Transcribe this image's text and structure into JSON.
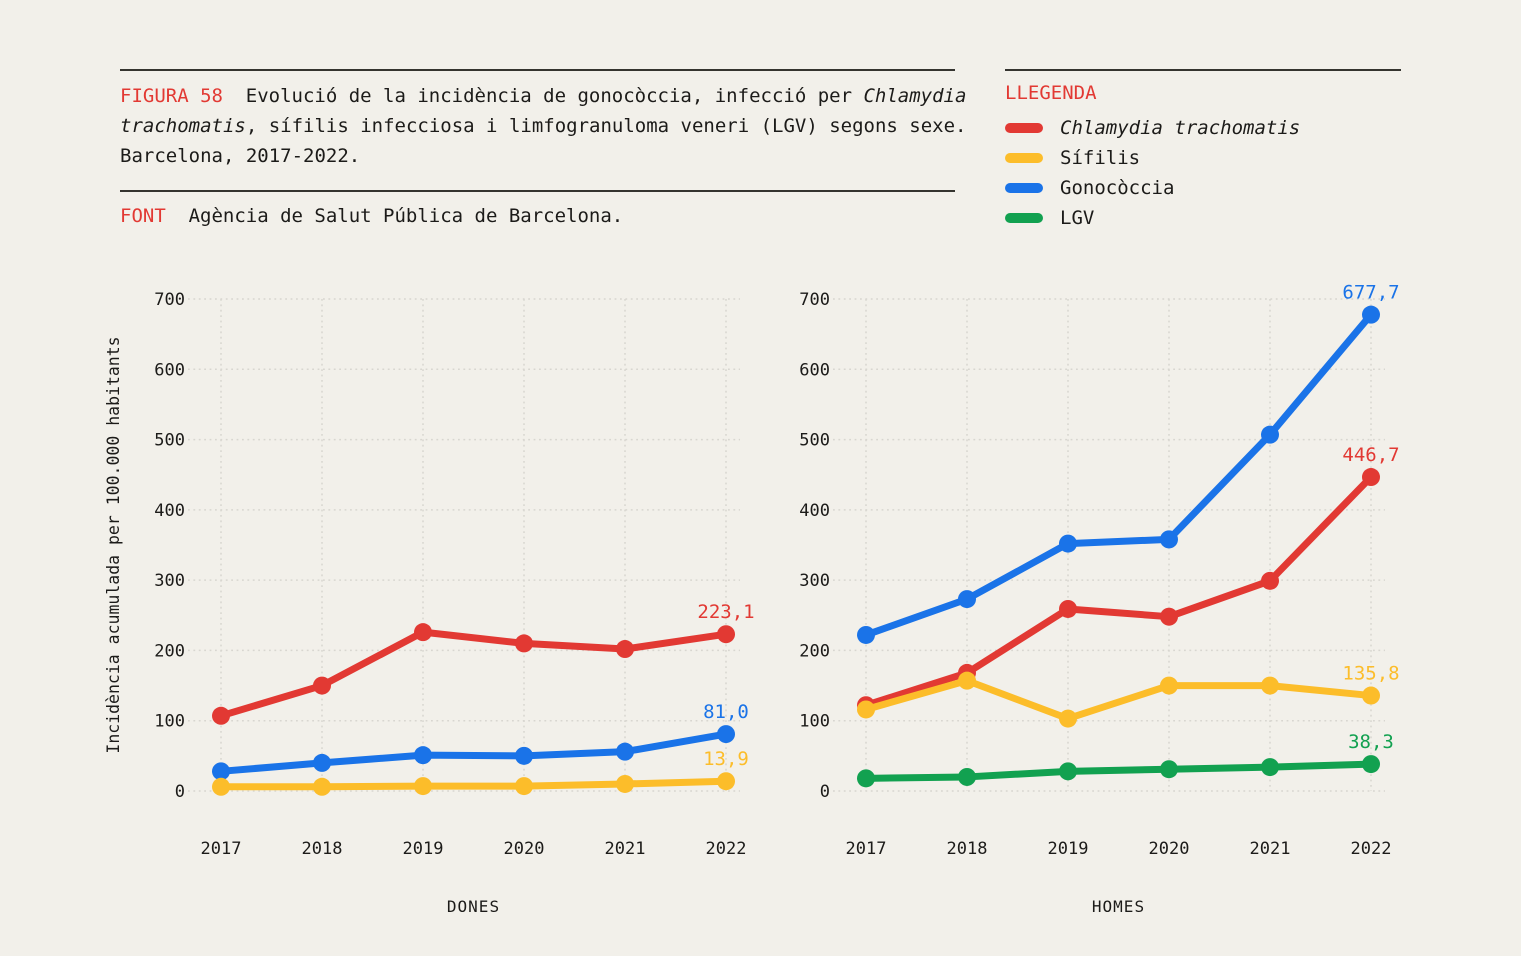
{
  "header": {
    "figure_label": "FIGURA 58",
    "title_before_italic": "Evolució de la incidència de gonocòccia, infecció per ",
    "title_italic": "Chlamydia trachomatis",
    "title_after_italic": ", sífilis infecciosa i limfogranuloma veneri (LGV) segons sexe. Barcelona, 2017-2022.",
    "font_label": "FONT",
    "font_text": "Agència de Salut Pública de Barcelona."
  },
  "legend": {
    "title": "LLEGENDA",
    "items": [
      {
        "label": "Chlamydia trachomatis",
        "color": "#e23933",
        "italic": true
      },
      {
        "label": "Sífilis",
        "color": "#fcbd2a",
        "italic": false
      },
      {
        "label": "Gonocòccia",
        "color": "#1a73e8",
        "italic": false
      },
      {
        "label": "LGV",
        "color": "#12a150",
        "italic": false
      }
    ]
  },
  "colors": {
    "background": "#f2f0ea",
    "text": "#1c1b19",
    "accent_red": "#e23933",
    "sifilis_yellow": "#fcbd2a",
    "gonococcia_blue": "#1a73e8",
    "lgv_green": "#12a150",
    "grid": "#d8d6d0",
    "rule": "#35342f"
  },
  "chart_data": [
    {
      "type": "line",
      "title": "DONES",
      "categories": [
        "2017",
        "2018",
        "2019",
        "2020",
        "2021",
        "2022"
      ],
      "xlabel": "",
      "ylabel": "Incidència acumulada per 100.000 habitants",
      "ylim": [
        0,
        700
      ],
      "ytick_step": 100,
      "grid": "dotted",
      "legend_position": "top-right-of-page",
      "series": [
        {
          "name": "Chlamydia trachomatis",
          "color": "#e23933",
          "values": [
            107,
            150,
            226,
            210,
            202,
            223.1
          ],
          "end_label": "223,1"
        },
        {
          "name": "Gonocòccia",
          "color": "#1a73e8",
          "values": [
            28,
            40,
            51,
            50,
            56,
            81.0
          ],
          "end_label": "81,0"
        },
        {
          "name": "Sífilis",
          "color": "#fcbd2a",
          "values": [
            6,
            6,
            7,
            7,
            10,
            13.9
          ],
          "end_label": "13,9"
        }
      ]
    },
    {
      "type": "line",
      "title": "HOMES",
      "categories": [
        "2017",
        "2018",
        "2019",
        "2020",
        "2021",
        "2022"
      ],
      "xlabel": "",
      "ylabel": "",
      "ylim": [
        0,
        700
      ],
      "ytick_step": 100,
      "grid": "dotted",
      "legend_position": "top-right-of-page",
      "series": [
        {
          "name": "Gonocòccia",
          "color": "#1a73e8",
          "values": [
            222,
            273,
            352,
            358,
            507,
            677.7
          ],
          "end_label": "677,7"
        },
        {
          "name": "Chlamydia trachomatis",
          "color": "#e23933",
          "values": [
            122,
            168,
            259,
            248,
            299,
            446.7
          ],
          "end_label": "446,7"
        },
        {
          "name": "Sífilis",
          "color": "#fcbd2a",
          "values": [
            116,
            157,
            103,
            150,
            150,
            135.8
          ],
          "end_label": "135,8"
        },
        {
          "name": "LGV",
          "color": "#12a150",
          "values": [
            18,
            20,
            28,
            31,
            34,
            38.3
          ],
          "end_label": "38,3"
        }
      ]
    }
  ]
}
